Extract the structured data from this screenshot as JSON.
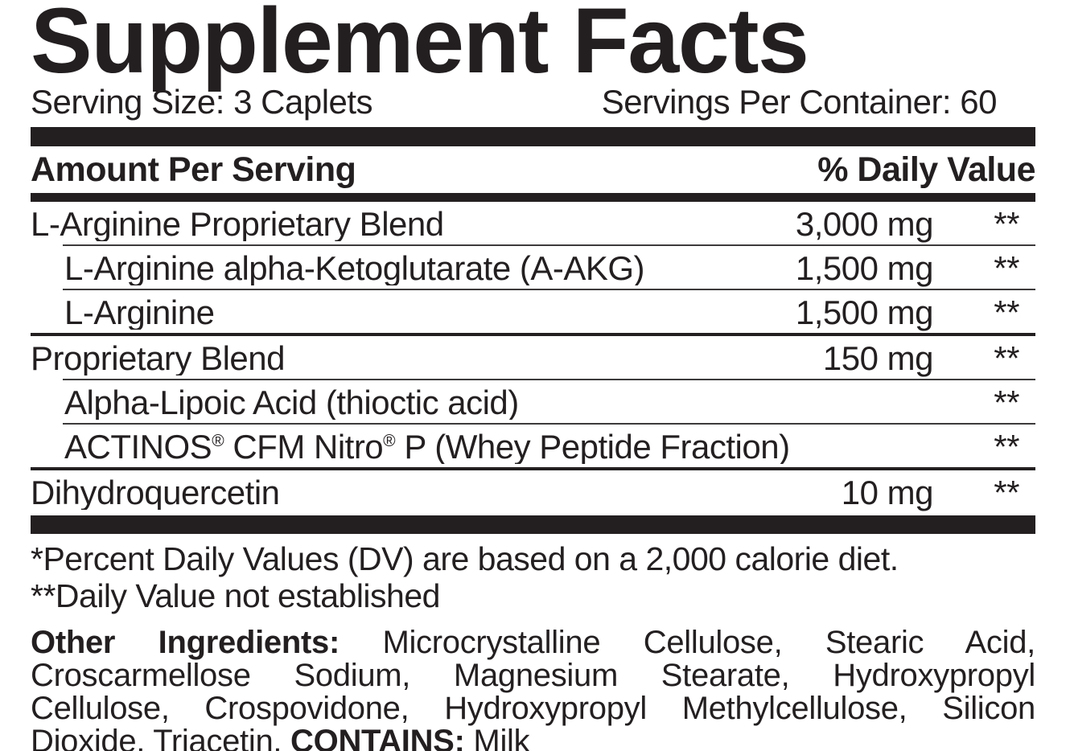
{
  "label": {
    "title": "Supplement Facts",
    "serving_size": "Serving Size: 3 Caplets",
    "servings_per_container": "Servings Per Container: 60",
    "header": {
      "amount_col": "Amount Per Serving",
      "dv_col": "% Daily Value"
    },
    "rows": [
      {
        "name": "L-Arginine Proprietary Blend",
        "amount": "3,000 mg",
        "dv": "**",
        "indented": false
      },
      {
        "name": "L-Arginine alpha-Ketoglutarate (A-AKG)",
        "amount": "1,500 mg",
        "dv": "**",
        "indented": true
      },
      {
        "name": "L-Arginine",
        "amount": "1,500 mg",
        "dv": "**",
        "indented": true
      },
      {
        "name": "Proprietary Blend",
        "amount": "150 mg",
        "dv": "**",
        "indented": false
      },
      {
        "name": "Alpha-Lipoic Acid (thioctic acid)",
        "amount": "",
        "dv": "**",
        "indented": true
      },
      {
        "name": "ACTINOS® CFM Nitro® P (Whey Peptide Fraction)",
        "amount": "",
        "dv": "**",
        "indented": true
      },
      {
        "name": "Dihydroquercetin",
        "amount": "10 mg",
        "dv": "**",
        "indented": false
      }
    ],
    "footnotes": [
      "*Percent Daily Values (DV) are based on a 2,000 calorie diet.",
      "**Daily Value not established"
    ],
    "other_ingredients": {
      "label": "Other Ingredients:",
      "text": "Microcrystalline Cellulose, Stearic Acid, Croscarmellose Sodium, Magnesium Stearate, Hydroxypropyl Cellulose, Crospovidone, Hydroxypropyl Methylcellulose, Silicon Dioxide, Triacetin.",
      "contains_label": "CONTAINS:",
      "contains_value": "Milk"
    },
    "colors": {
      "ink": "#231f20",
      "background": "#ffffff"
    }
  }
}
